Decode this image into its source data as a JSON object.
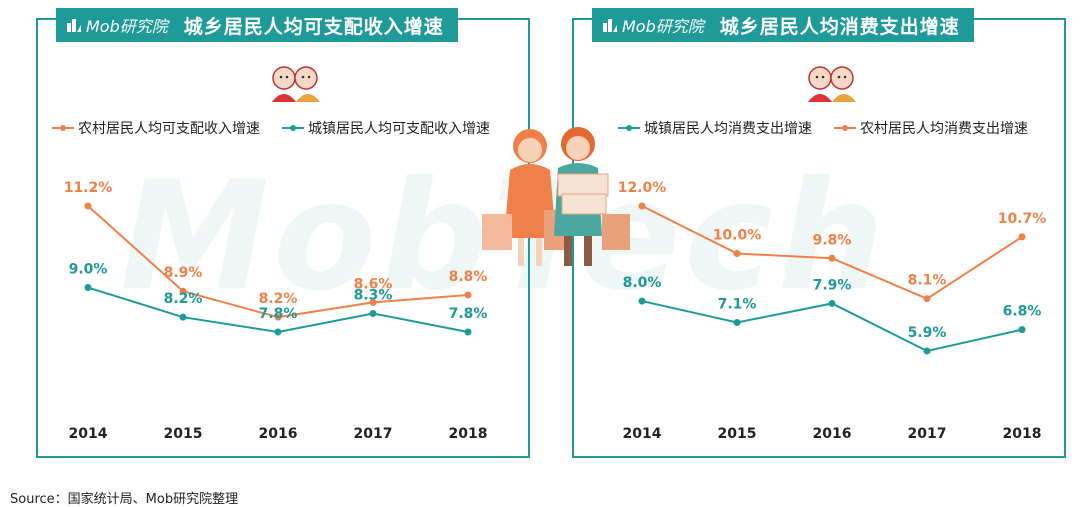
{
  "watermark": "MobTech",
  "brand": "Mob研究院",
  "source": "Source：国家统计局、Mob研究院整理",
  "colors": {
    "teal": "#1e9a98",
    "orange": "#f0804a"
  },
  "icons": {
    "mascot": "couple-mascot-icon",
    "people": "shopping-couple-illustration"
  },
  "chart_data": [
    {
      "type": "line",
      "title": "城乡居民人均可支配收入增速",
      "x": [
        "2014",
        "2015",
        "2016",
        "2017",
        "2018"
      ],
      "series": [
        {
          "name": "农村居民人均可支配收入增速",
          "color": "#f0804a",
          "values": [
            11.2,
            8.9,
            8.2,
            8.6,
            8.8
          ],
          "labels": [
            "11.2%",
            "8.9%",
            "8.2%",
            "8.6%",
            "8.8%"
          ]
        },
        {
          "name": "城镇居民人均可支配收入增速",
          "color": "#1e9a98",
          "values": [
            9.0,
            8.2,
            7.8,
            8.3,
            7.8
          ],
          "labels": [
            "9.0%",
            "8.2%",
            "7.8%",
            "8.3%",
            "7.8%"
          ]
        }
      ]
    },
    {
      "type": "line",
      "title": "城乡居民人均消费支出增速",
      "x": [
        "2014",
        "2015",
        "2016",
        "2017",
        "2018"
      ],
      "series": [
        {
          "name": "城镇居民人均消费支出增速",
          "color": "#1e9a98",
          "values": [
            8.0,
            7.1,
            7.9,
            5.9,
            6.8
          ],
          "labels": [
            "8.0%",
            "7.1%",
            "7.9%",
            "5.9%",
            "6.8%"
          ]
        },
        {
          "name": "农村居民人均消费支出增速",
          "color": "#f0804a",
          "values": [
            12.0,
            10.0,
            9.8,
            8.1,
            10.7
          ],
          "labels": [
            "12.0%",
            "10.0%",
            "9.8%",
            "8.1%",
            "10.7%"
          ]
        }
      ]
    }
  ]
}
